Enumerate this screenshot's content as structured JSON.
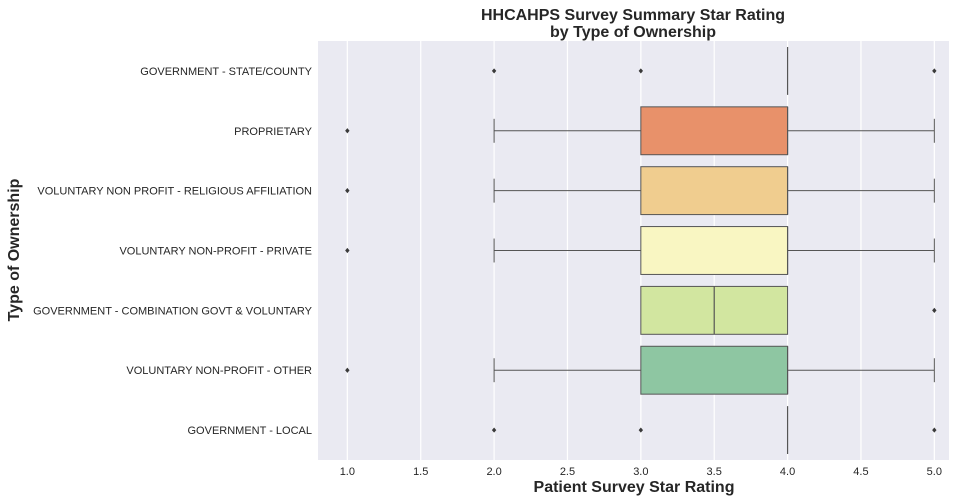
{
  "chart_data": {
    "type": "box",
    "orientation": "horizontal",
    "title_lines": [
      "HHCAHPS Survey Summary Star Rating",
      "by Type of Ownership"
    ],
    "xlabel": "Patient Survey Star Rating",
    "ylabel": "Type of Ownership",
    "xlim": [
      0.8,
      5.1
    ],
    "x_ticks": [
      1.0,
      1.5,
      2.0,
      2.5,
      3.0,
      3.5,
      4.0,
      4.5,
      5.0
    ],
    "x_tick_labels": [
      "1.0",
      "1.5",
      "2.0",
      "2.5",
      "3.0",
      "3.5",
      "4.0",
      "4.5",
      "5.0"
    ],
    "grid": true,
    "categories": [
      {
        "name": "GOVERNMENT - STATE/COUNTY",
        "whisker_low": 4,
        "q1": 4,
        "median": 4,
        "q3": 4,
        "whisker_high": 4,
        "outliers": [
          2,
          3,
          5
        ],
        "color": "#9e0142"
      },
      {
        "name": "PROPRIETARY",
        "whisker_low": 2,
        "q1": 3,
        "median": 4,
        "q3": 4,
        "whisker_high": 5,
        "outliers": [
          1
        ],
        "color": "#e8916a"
      },
      {
        "name": "VOLUNTARY NON PROFIT - RELIGIOUS AFFILIATION",
        "whisker_low": 2,
        "q1": 3,
        "median": 4,
        "q3": 4,
        "whisker_high": 5,
        "outliers": [
          1
        ],
        "color": "#f0cd8f"
      },
      {
        "name": "VOLUNTARY NON-PROFIT - PRIVATE",
        "whisker_low": 2,
        "q1": 3,
        "median": 4,
        "q3": 4,
        "whisker_high": 5,
        "outliers": [
          1
        ],
        "color": "#f9f6c2"
      },
      {
        "name": "GOVERNMENT - COMBINATION GOVT & VOLUNTARY",
        "whisker_low": 3,
        "q1": 3,
        "median": 3.5,
        "q3": 4,
        "whisker_high": 4,
        "outliers": [
          5
        ],
        "color": "#d2e6a0"
      },
      {
        "name": "VOLUNTARY NON-PROFIT - OTHER",
        "whisker_low": 2,
        "q1": 3,
        "median": 4,
        "q3": 4,
        "whisker_high": 5,
        "outliers": [
          1
        ],
        "color": "#8ec6a2"
      },
      {
        "name": "GOVERNMENT - LOCAL",
        "whisker_low": 4,
        "q1": 4,
        "median": 4,
        "q3": 4,
        "whisker_high": 4,
        "outliers": [
          2,
          3,
          5
        ],
        "color": "#5e4fa2"
      }
    ]
  }
}
